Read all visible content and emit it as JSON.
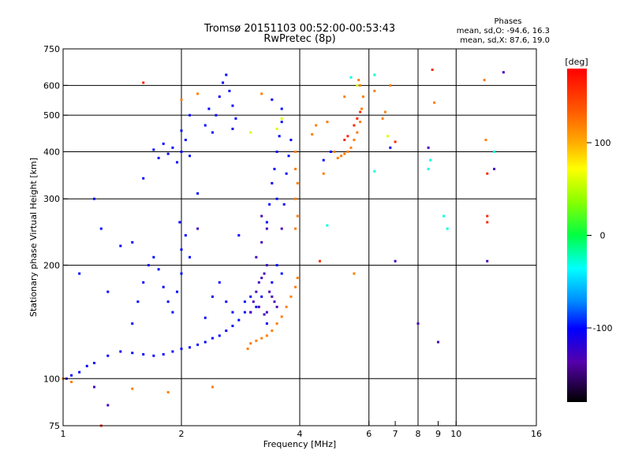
{
  "chart_data": {
    "type": "scatter",
    "title": "Tromsø 20151103 00:52:00-00:53:43",
    "subtitle": "RwPretec (8p)",
    "stats": {
      "heading": "Phases",
      "line1": "mean, sd,O:  -94.6, 16.3",
      "line2": "mean, sd,X:  87.6, 19.0"
    },
    "xlabel": "Frequency [MHz]",
    "ylabel": "Stationary phase Virtual Height [km]",
    "x_scale": "log",
    "y_scale": "log",
    "xlim": [
      1,
      16
    ],
    "ylim": [
      75,
      750
    ],
    "x_ticks": [
      1,
      2,
      4,
      6,
      7,
      8,
      9,
      10,
      16
    ],
    "x_tick_labels": [
      "1",
      "2",
      "4",
      "6",
      "7",
      "8",
      "9",
      "10",
      "16"
    ],
    "y_ticks": [
      75,
      100,
      200,
      300,
      400,
      500,
      600,
      750
    ],
    "y_tick_labels": [
      "75",
      "100",
      "200",
      "300",
      "400",
      "500",
      "600",
      "750"
    ],
    "grid_x": [
      2,
      4,
      6,
      8,
      10
    ],
    "grid_y": [
      100,
      200,
      300,
      400,
      500,
      600
    ],
    "colorbar": {
      "label": "[deg]",
      "range": [
        -180,
        180
      ],
      "ticks": [
        100,
        0,
        -100
      ],
      "tick_labels": [
        "100",
        "0",
        "-100"
      ]
    },
    "series": [
      {
        "phase": -100,
        "points": [
          [
            1.02,
            100
          ],
          [
            1.05,
            102
          ],
          [
            1.1,
            104
          ],
          [
            1.15,
            108
          ],
          [
            1.2,
            110
          ],
          [
            1.3,
            115
          ],
          [
            1.4,
            118
          ],
          [
            1.5,
            117
          ],
          [
            1.6,
            116
          ],
          [
            1.7,
            115
          ],
          [
            1.8,
            116
          ],
          [
            1.9,
            118
          ],
          [
            2.0,
            120
          ],
          [
            2.1,
            121
          ],
          [
            2.2,
            123
          ],
          [
            2.3,
            125
          ],
          [
            2.4,
            128
          ],
          [
            2.5,
            130
          ],
          [
            2.6,
            134
          ],
          [
            2.7,
            138
          ],
          [
            2.8,
            143
          ],
          [
            2.9,
            150
          ],
          [
            1.5,
            140
          ],
          [
            1.55,
            160
          ],
          [
            1.6,
            180
          ],
          [
            1.65,
            200
          ],
          [
            1.7,
            210
          ],
          [
            1.75,
            195
          ],
          [
            1.8,
            175
          ],
          [
            1.85,
            160
          ],
          [
            1.9,
            150
          ],
          [
            1.95,
            170
          ],
          [
            2.0,
            190
          ],
          [
            2.0,
            220
          ],
          [
            2.05,
            240
          ],
          [
            2.1,
            210
          ],
          [
            1.98,
            260
          ],
          [
            2.3,
            145
          ],
          [
            2.4,
            165
          ],
          [
            2.5,
            180
          ],
          [
            2.6,
            160
          ],
          [
            2.7,
            150
          ],
          [
            2.8,
            240
          ],
          [
            2.9,
            160
          ],
          [
            3.0,
            150
          ],
          [
            3.0,
            165
          ],
          [
            3.1,
            155
          ],
          [
            3.2,
            165
          ],
          [
            3.3,
            140
          ],
          [
            3.4,
            180
          ],
          [
            3.5,
            200
          ],
          [
            3.6,
            190
          ],
          [
            1.7,
            405
          ],
          [
            1.75,
            385
          ],
          [
            1.8,
            420
          ],
          [
            1.85,
            395
          ],
          [
            1.9,
            410
          ],
          [
            1.95,
            375
          ],
          [
            2.0,
            400
          ],
          [
            2.05,
            430
          ],
          [
            2.1,
            390
          ],
          [
            2.0,
            455
          ],
          [
            2.1,
            500
          ],
          [
            2.3,
            470
          ],
          [
            2.35,
            520
          ],
          [
            2.4,
            450
          ],
          [
            2.45,
            500
          ],
          [
            2.5,
            560
          ],
          [
            2.55,
            610
          ],
          [
            2.6,
            640
          ],
          [
            2.65,
            580
          ],
          [
            2.7,
            530
          ],
          [
            2.7,
            460
          ],
          [
            2.75,
            490
          ],
          [
            3.3,
            260
          ],
          [
            3.35,
            290
          ],
          [
            3.4,
            330
          ],
          [
            3.45,
            360
          ],
          [
            3.5,
            400
          ],
          [
            3.55,
            440
          ],
          [
            3.6,
            480
          ],
          [
            3.5,
            300
          ],
          [
            3.65,
            290
          ],
          [
            3.7,
            350
          ],
          [
            3.75,
            390
          ],
          [
            3.8,
            430
          ],
          [
            3.6,
            520
          ],
          [
            3.4,
            550
          ],
          [
            4.6,
            380
          ],
          [
            4.8,
            400
          ],
          [
            6.8,
            410
          ],
          [
            1.2,
            300
          ],
          [
            1.25,
            250
          ],
          [
            2.2,
            310
          ],
          [
            1.6,
            340
          ],
          [
            1.4,
            225
          ],
          [
            1.5,
            230
          ],
          [
            1.3,
            170
          ],
          [
            1.1,
            190
          ]
        ]
      },
      {
        "phase": -130,
        "points": [
          [
            3.0,
            150
          ],
          [
            3.05,
            160
          ],
          [
            3.1,
            170
          ],
          [
            3.15,
            180
          ],
          [
            3.2,
            185
          ],
          [
            3.25,
            190
          ],
          [
            3.3,
            200
          ],
          [
            3.1,
            210
          ],
          [
            3.2,
            230
          ],
          [
            3.35,
            170
          ],
          [
            3.4,
            165
          ],
          [
            3.45,
            160
          ],
          [
            3.5,
            155
          ],
          [
            3.15,
            155
          ],
          [
            3.25,
            148
          ],
          [
            3.3,
            150
          ],
          [
            3.2,
            270
          ],
          [
            3.3,
            250
          ],
          [
            3.6,
            250
          ],
          [
            1.3,
            85
          ],
          [
            1.2,
            95
          ],
          [
            8.0,
            140
          ],
          [
            9.0,
            125
          ],
          [
            7.0,
            205
          ],
          [
            12.0,
            205
          ],
          [
            8.5,
            410
          ],
          [
            12.5,
            360
          ],
          [
            13.2,
            650
          ],
          [
            2.2,
            250
          ]
        ]
      },
      {
        "phase": 120,
        "points": [
          [
            2.95,
            120
          ],
          [
            3.0,
            124
          ],
          [
            3.1,
            126
          ],
          [
            3.2,
            128
          ],
          [
            3.3,
            130
          ],
          [
            3.4,
            134
          ],
          [
            3.5,
            140
          ],
          [
            3.6,
            146
          ],
          [
            3.7,
            155
          ],
          [
            3.8,
            165
          ],
          [
            3.9,
            175
          ],
          [
            3.95,
            185
          ],
          [
            3.9,
            250
          ],
          [
            3.95,
            270
          ],
          [
            3.9,
            300
          ],
          [
            3.95,
            330
          ],
          [
            3.9,
            360
          ],
          [
            3.9,
            400
          ],
          [
            4.9,
            400
          ],
          [
            5.0,
            385
          ],
          [
            5.1,
            390
          ],
          [
            5.2,
            395
          ],
          [
            5.3,
            400
          ],
          [
            5.4,
            410
          ],
          [
            5.5,
            430
          ],
          [
            5.6,
            450
          ],
          [
            5.7,
            480
          ],
          [
            5.75,
            520
          ],
          [
            5.8,
            560
          ],
          [
            5.7,
            600
          ],
          [
            5.65,
            620
          ],
          [
            5.2,
            560
          ],
          [
            4.7,
            480
          ],
          [
            4.4,
            470
          ],
          [
            1.0,
            100
          ],
          [
            1.05,
            98
          ],
          [
            1.5,
            94
          ],
          [
            1.85,
            92
          ],
          [
            2.4,
            95
          ],
          [
            6.5,
            490
          ],
          [
            6.6,
            510
          ],
          [
            6.2,
            580
          ],
          [
            6.8,
            600
          ],
          [
            2.2,
            570
          ],
          [
            2.0,
            550
          ],
          [
            3.2,
            570
          ],
          [
            8.8,
            540
          ],
          [
            11.8,
            620
          ],
          [
            11.9,
            430
          ],
          [
            5.5,
            190
          ],
          [
            4.6,
            350
          ],
          [
            4.3,
            445
          ]
        ]
      },
      {
        "phase": 60,
        "points": [
          [
            3.5,
            460
          ],
          [
            3.6,
            490
          ],
          [
            3.0,
            450
          ],
          [
            5.6,
            600
          ],
          [
            6.7,
            440
          ]
        ]
      },
      {
        "phase": -30,
        "points": [
          [
            8.5,
            360
          ],
          [
            8.6,
            380
          ],
          [
            9.3,
            270
          ],
          [
            9.5,
            250
          ],
          [
            5.4,
            630
          ],
          [
            6.2,
            640
          ],
          [
            4.7,
            255
          ],
          [
            6.2,
            355
          ],
          [
            12.5,
            400
          ]
        ]
      },
      {
        "phase": 160,
        "points": [
          [
            5.6,
            490
          ],
          [
            5.7,
            510
          ],
          [
            5.5,
            470
          ],
          [
            5.2,
            430
          ],
          [
            5.3,
            440
          ],
          [
            8.7,
            660
          ],
          [
            12.0,
            350
          ],
          [
            12.0,
            260
          ],
          [
            12.0,
            270
          ],
          [
            1.25,
            75
          ],
          [
            1.6,
            610
          ],
          [
            4.5,
            205
          ],
          [
            7.0,
            425
          ]
        ]
      }
    ]
  }
}
